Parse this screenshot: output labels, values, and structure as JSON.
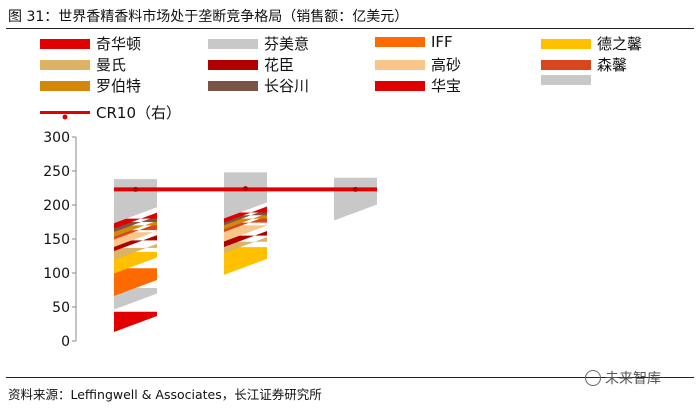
{
  "title": "图 31：世界香精香料市场处于垄断竞争格局（销售额：亿美元）",
  "source": "资料来源：Leffingwell & Associates，长江证券研究所",
  "watermark": "未来智库",
  "legend": [
    {
      "name": "奇华顿",
      "color": "#e00000"
    },
    {
      "name": "芬美意",
      "color": "#c8c8c8"
    },
    {
      "name": "IFF",
      "color": "#ff6a00"
    },
    {
      "name": "德之馨",
      "color": "#ffc000"
    },
    {
      "name": "曼氏",
      "color": "#dcb265"
    },
    {
      "name": "花臣",
      "color": "#b00000"
    },
    {
      "name": "高砂",
      "color": "#f9c588"
    },
    {
      "name": "森馨",
      "color": "#d9461e"
    },
    {
      "name": "罗伯特",
      "color": "#d4880a"
    },
    {
      "name": "长谷川",
      "color": "#7a5545"
    },
    {
      "name": "华宝",
      "color": "#e00000"
    },
    {
      "name": "",
      "color": "#c8c8c8"
    },
    {
      "name": "CR10（右）",
      "color": "#e00000",
      "kind": "line"
    }
  ],
  "chart_data": {
    "type": "bar",
    "subtype": "waterfall",
    "y_ticks": [
      "0",
      "50",
      "100",
      "150",
      "200",
      "250",
      "300"
    ],
    "ylim": [
      0,
      300
    ],
    "groups": [
      {
        "segments": [
          {
            "color": "#e00000",
            "start": 25,
            "end": 43
          },
          {
            "color": "#c8c8c8",
            "start": 58,
            "end": 78
          },
          {
            "color": "#ff6a00",
            "start": 78,
            "end": 107
          },
          {
            "color": "#ffc000",
            "start": 111,
            "end": 131
          },
          {
            "color": "#dcb265",
            "start": 131,
            "end": 137
          },
          {
            "color": "#b00000",
            "start": 144,
            "end": 148
          },
          {
            "color": "#f9c588",
            "start": 150,
            "end": 160
          },
          {
            "color": "#d9461e",
            "start": 161,
            "end": 163
          },
          {
            "color": "#d4880a",
            "start": 165,
            "end": 170
          },
          {
            "color": "#7a5545",
            "start": 172,
            "end": 175
          },
          {
            "color": "#e00000",
            "start": 177,
            "end": 180
          },
          {
            "color": "#c8c8c8",
            "start": 185,
            "end": 238
          }
        ]
      },
      {
        "segments": [
          {
            "color": "#ffc000",
            "start": 109,
            "end": 138
          },
          {
            "color": "#dcb265",
            "start": 141,
            "end": 146
          },
          {
            "color": "#b00000",
            "start": 150,
            "end": 155
          },
          {
            "color": "#f9c588",
            "start": 158,
            "end": 170
          },
          {
            "color": "#d9461e",
            "start": 172,
            "end": 174
          },
          {
            "color": "#d4880a",
            "start": 176,
            "end": 180
          },
          {
            "color": "#7a5545",
            "start": 182,
            "end": 185
          },
          {
            "color": "#e00000",
            "start": 186,
            "end": 189
          },
          {
            "color": "#c8c8c8",
            "start": 192,
            "end": 248
          }
        ]
      },
      {
        "segments": [
          {
            "color": "#c8c8c8",
            "start": 189,
            "end": 240
          }
        ]
      }
    ],
    "cr10": {
      "name": "CR10（右）",
      "color": "#e00000",
      "values": [
        223,
        224,
        223
      ]
    }
  }
}
